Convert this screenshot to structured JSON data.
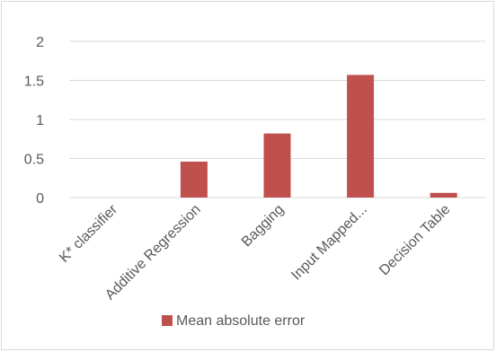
{
  "chart_data": {
    "type": "bar",
    "categories": [
      "K* classifier",
      "Additive Regression",
      "Bagging",
      "Input Mapped...",
      "Decision Table"
    ],
    "series": [
      {
        "name": "Mean absolute error",
        "values": [
          0,
          0.46,
          0.82,
          1.57,
          0.06
        ],
        "color": "#c0504d"
      }
    ],
    "ylim": [
      0,
      2
    ],
    "yticks": [
      "0",
      "0.5",
      "1",
      "1.5",
      "2"
    ],
    "ytick_values": [
      0,
      0.5,
      1,
      1.5,
      2
    ],
    "grid": true,
    "legend_position": "bottom",
    "gridline_color": "#d9d9d9",
    "text_color": "#595959"
  }
}
